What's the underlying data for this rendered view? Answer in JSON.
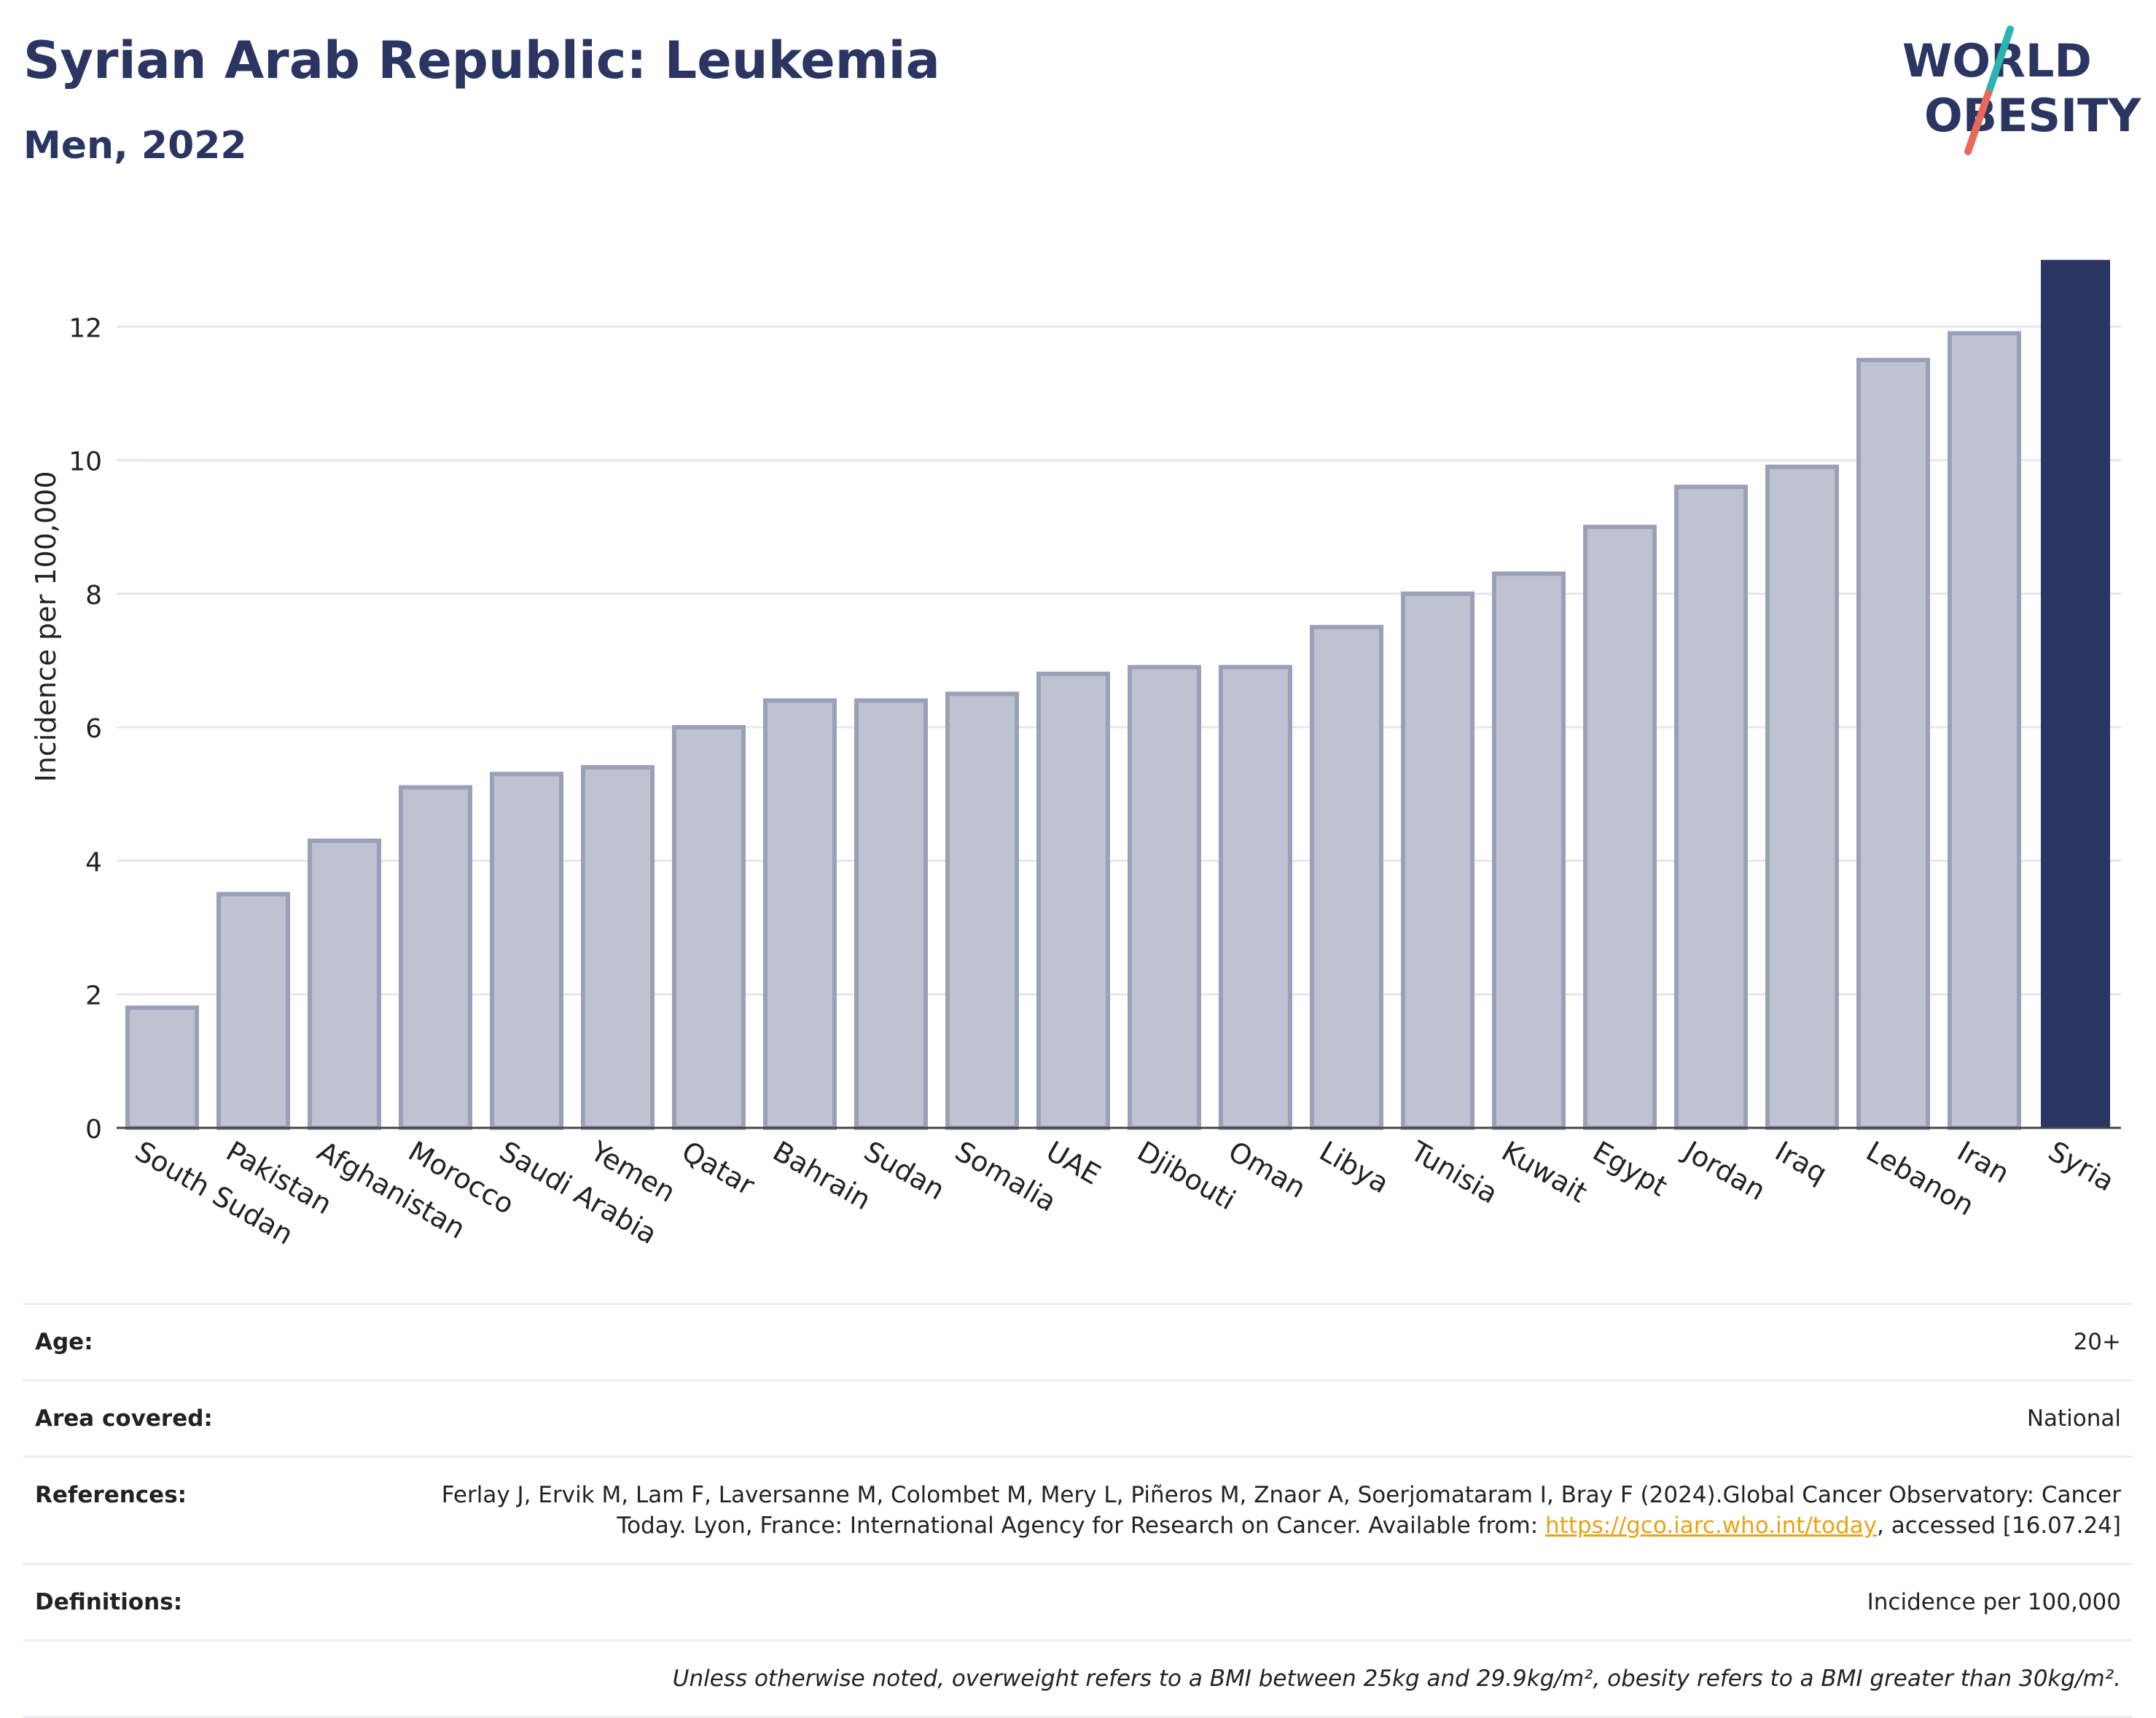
{
  "header": {
    "title": "Syrian Arab Republic: Leukemia",
    "subtitle": "Men, 2022"
  },
  "logo": {
    "line1": "WORLD",
    "line2": "OBESITY",
    "slash_colors": [
      "#2ab3b1",
      "#e8685a"
    ],
    "text_color": "#2b3562"
  },
  "chart_data": {
    "type": "bar",
    "ylabel": "Incidence per 100,000",
    "xlabel": "",
    "ylim": [
      0,
      13.4
    ],
    "yticks": [
      0,
      2,
      4,
      6,
      8,
      10,
      12
    ],
    "grid": true,
    "categories": [
      "South Sudan",
      "Pakistan",
      "Afghanistan",
      "Morocco",
      "Saudi Arabia",
      "Yemen",
      "Qatar",
      "Bahrain",
      "Sudan",
      "Somalia",
      "UAE",
      "Djibouti",
      "Oman",
      "Libya",
      "Tunisia",
      "Kuwait",
      "Egypt",
      "Jordan",
      "Iraq",
      "Lebanon",
      "Iran",
      "Syria"
    ],
    "values": [
      1.8,
      3.5,
      4.3,
      5.1,
      5.3,
      5.4,
      6.0,
      6.4,
      6.4,
      6.5,
      6.8,
      6.9,
      6.9,
      7.5,
      8.0,
      8.3,
      9.0,
      9.6,
      9.9,
      11.5,
      11.9,
      13.0
    ],
    "highlight": "Syria",
    "colors": {
      "bar": "#bfc2d0",
      "bar_edge": "#9aa0b8",
      "highlight": "#2b3562",
      "grid": "#e6e8f0"
    }
  },
  "info": {
    "rows": [
      {
        "label": "Age:",
        "value": "20+"
      },
      {
        "label": "Area covered:",
        "value": "National"
      },
      {
        "label": "References:",
        "value_pre": "Ferlay J, Ervik M, Lam F, Laversanne M, Colombet M, Mery L, Piñeros M, Znaor A, Soerjomataram I, Bray F (2024).Global Cancer Observatory: Cancer Today. Lyon, France: International Agency for Research on Cancer. Available from: ",
        "link": "https://gco.iarc.who.int/today",
        "value_post": ", accessed [16.07.24]"
      },
      {
        "label": "Definitions:",
        "value": "Incidence per 100,000"
      }
    ],
    "note": "Unless otherwise noted, overweight refers to a BMI between 25kg and 29.9kg/m², obesity refers to a BMI greater than 30kg/m²."
  }
}
